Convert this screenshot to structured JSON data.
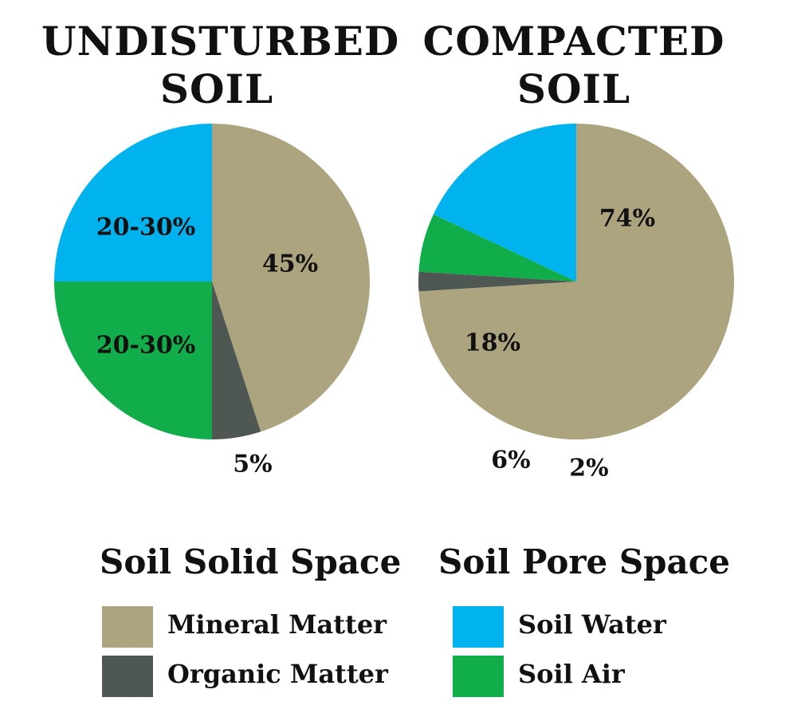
{
  "chart_data": [
    {
      "type": "pie",
      "title": [
        "UNDISTURBED",
        "SOIL"
      ],
      "slices": [
        {
          "category": "Mineral Matter",
          "value": 45,
          "label": "45%",
          "color": "#aca47f"
        },
        {
          "category": "Organic Matter",
          "value": 5,
          "label": "5%",
          "color": "#4e5751"
        },
        {
          "category": "Soil Air",
          "value": 25,
          "label": "20-30%",
          "color": "#11ad4a"
        },
        {
          "category": "Soil Water",
          "value": 25,
          "label": "20-30%",
          "color": "#00b3ef"
        }
      ]
    },
    {
      "type": "pie",
      "title": [
        "COMPACTED",
        "SOIL"
      ],
      "slices": [
        {
          "category": "Mineral Matter",
          "value": 74,
          "label": "74%",
          "color": "#aca47f"
        },
        {
          "category": "Organic Matter",
          "value": 2,
          "label": "2%",
          "color": "#4e5751"
        },
        {
          "category": "Soil Air",
          "value": 6,
          "label": "6%",
          "color": "#11ad4a"
        },
        {
          "category": "Soil Water",
          "value": 18,
          "label": "18%",
          "color": "#00b3ef"
        }
      ]
    }
  ],
  "legend": {
    "groups": [
      {
        "heading": "Soil Solid Space",
        "items": [
          {
            "label": "Mineral Matter",
            "color": "#aca47f"
          },
          {
            "label": "Organic Matter",
            "color": "#4e5751"
          }
        ]
      },
      {
        "heading": "Soil Pore Space",
        "items": [
          {
            "label": "Soil Water",
            "color": "#00b3ef"
          },
          {
            "label": "Soil Air",
            "color": "#11ad4a"
          }
        ]
      }
    ]
  }
}
